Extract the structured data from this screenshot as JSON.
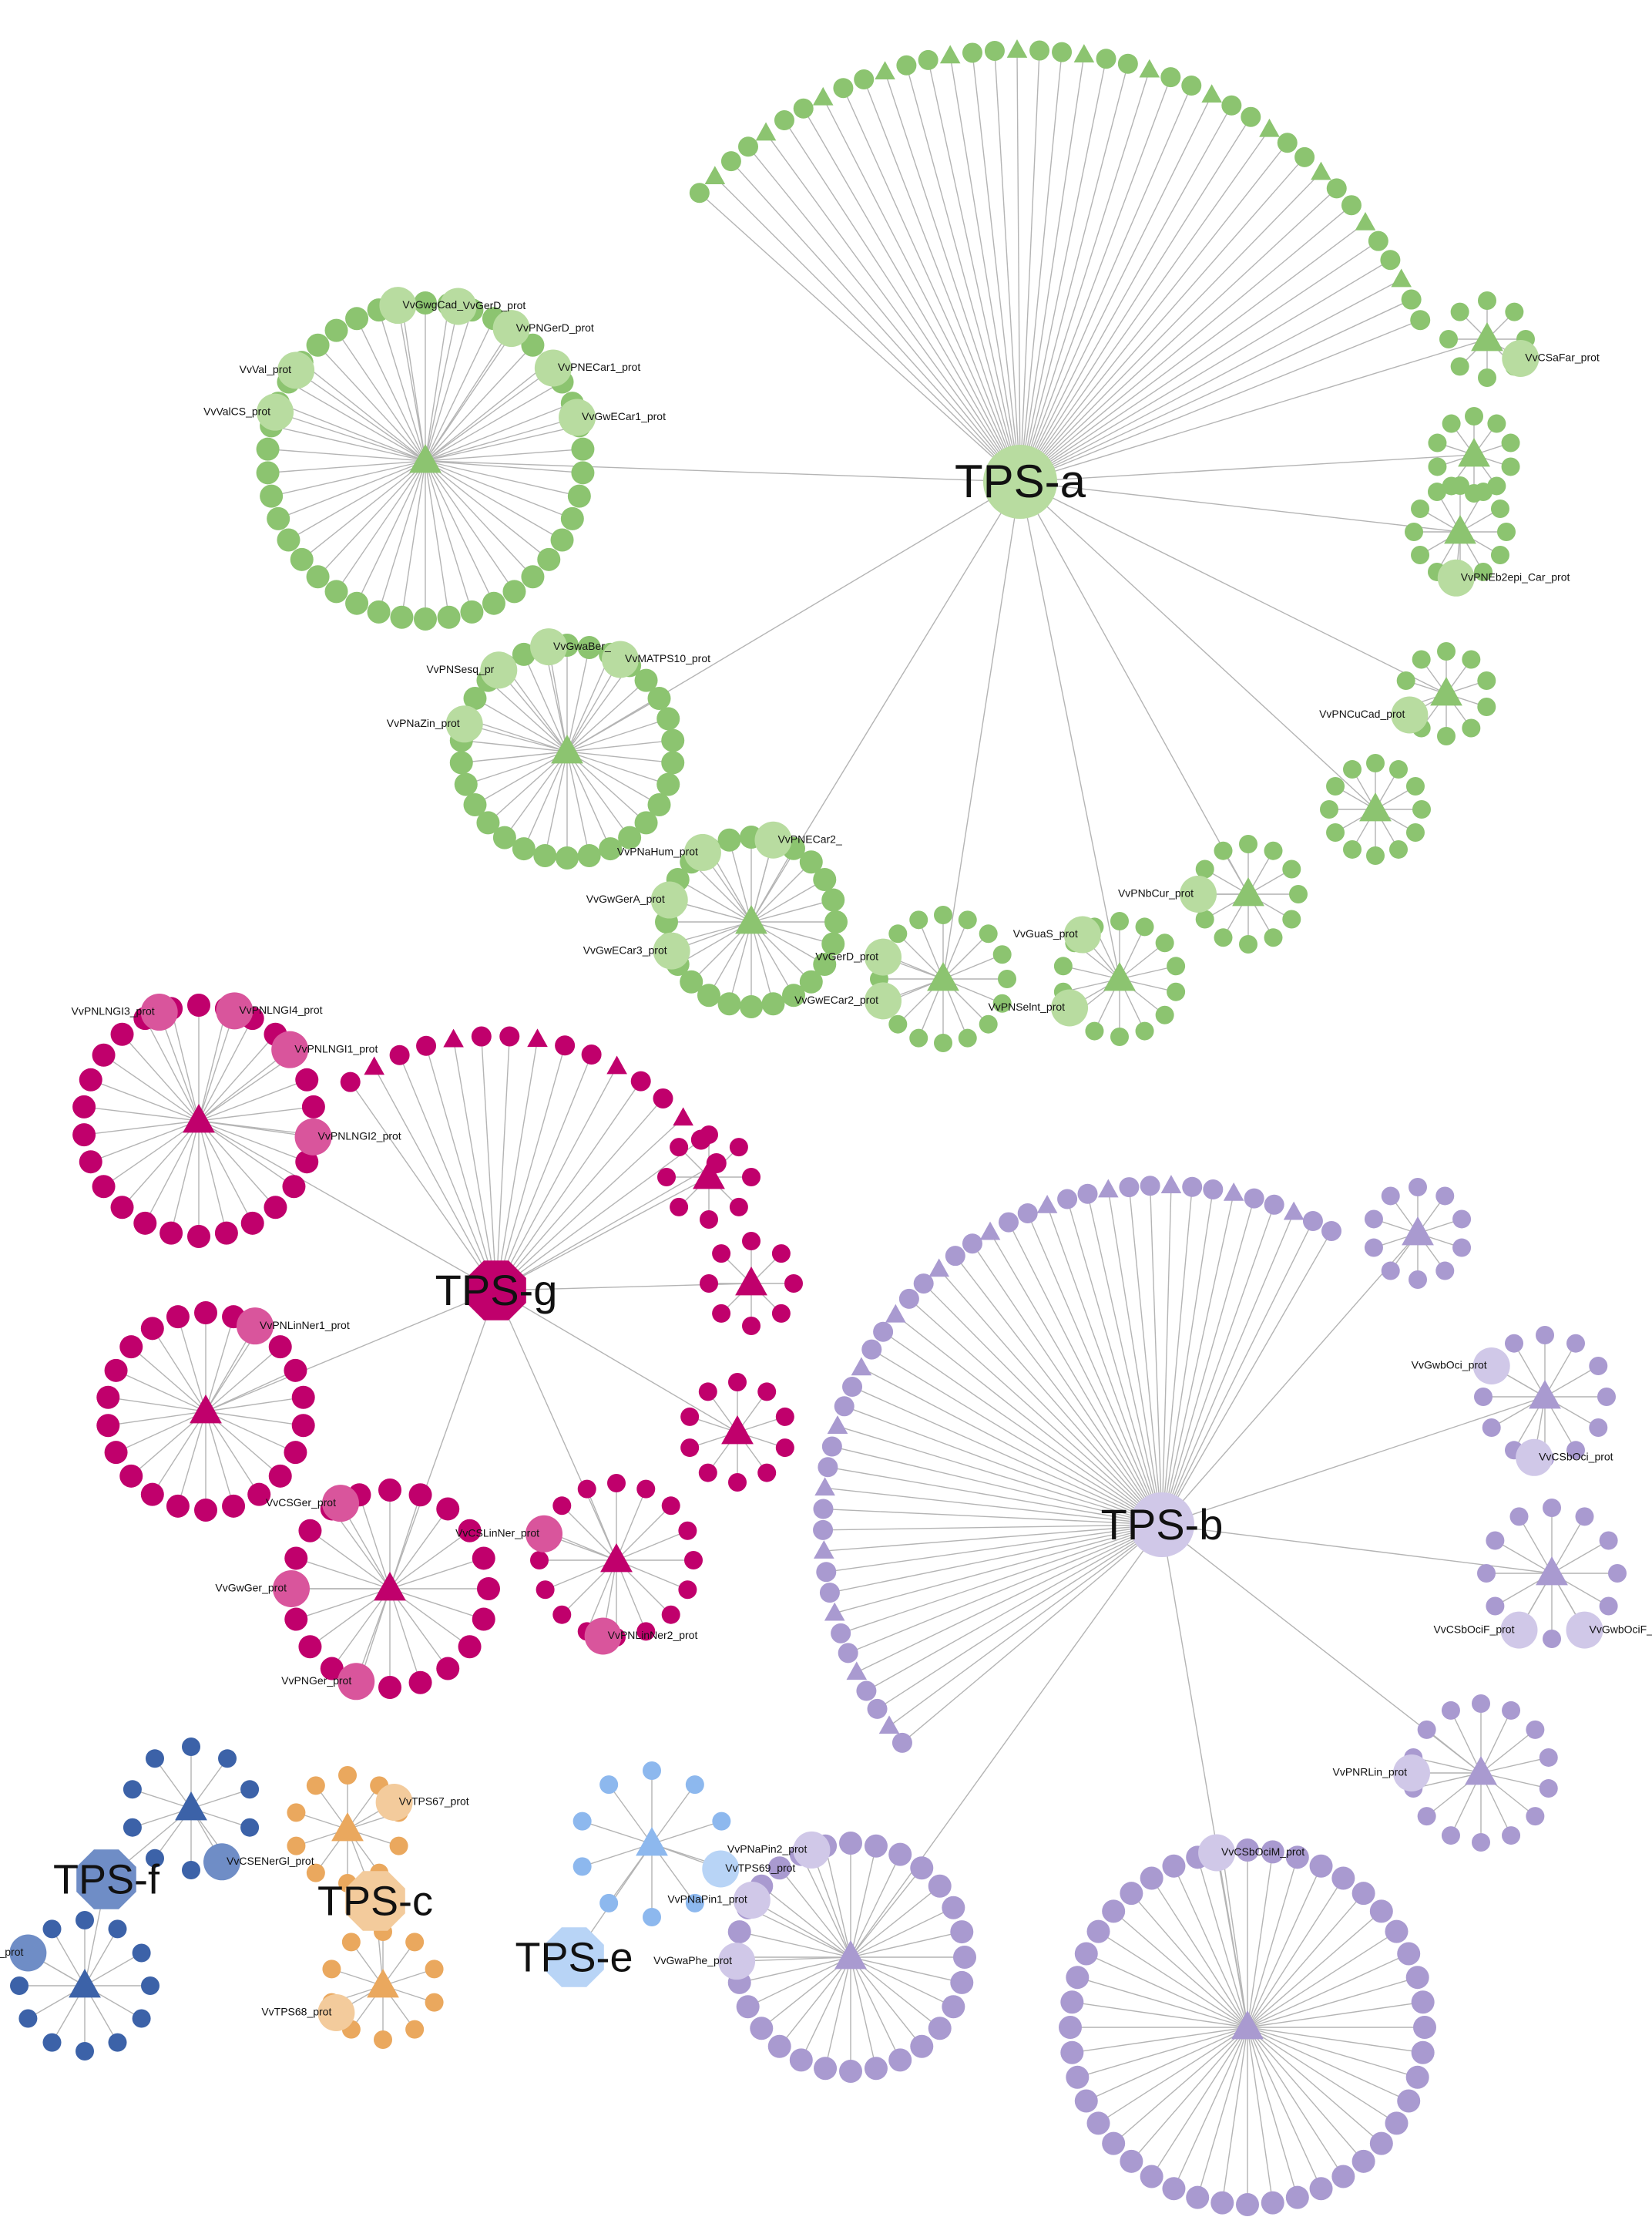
{
  "groups": [
    {
      "label": "TPS-a",
      "color": "#8cc470",
      "light": "#b8dca0",
      "clusters": [
        {
          "labels": [
            "VvGwgCad_",
            "VvGerD_prot",
            "VvPNGerD_prot",
            "VvVal_prot",
            "VvPNECar1_prot",
            "VvValCS_prot",
            "VvGwECar1_prot"
          ]
        },
        {
          "labels": [
            "VvGwaBer_",
            "VvMATPS10_prot",
            "VvPNSesq_pr",
            "VvPNaZin_prot"
          ]
        },
        {
          "labels": [
            "VvPNECar2_",
            "VvPNaHum_prot",
            "VvGwGerA_prot",
            "VvGwECar3_prot"
          ]
        },
        {
          "labels": [
            "VvGerD_prot",
            "VvGwECar2_prot"
          ]
        },
        {
          "labels": [
            "VvGuaS_prot",
            "VvPNSelnt_prot"
          ]
        },
        {
          "labels": [
            "VvPNbCur_prot"
          ]
        },
        {
          "labels": [
            "VvPNCuCad_prot"
          ]
        },
        {
          "labels": [
            "VvPNEb2epi_Car_prot"
          ]
        },
        {
          "labels": [
            "VvCSaFar_prot"
          ]
        }
      ]
    },
    {
      "label": "TPS-g",
      "color": "#c0006c",
      "light": "#d9559c",
      "clusters": [
        {
          "labels": [
            "VvPNLNGI3_prot",
            "VvPNLNGI4_prot",
            "VvPNLNGI1_prot",
            "VvPNLNGI2_prot"
          ]
        },
        {
          "labels": [
            "VvPNLinNer1_prot"
          ]
        },
        {
          "labels": [
            "VvCSGer_prot",
            "VvGwGer_prot",
            "VvPNGer_prot"
          ]
        },
        {
          "labels": [
            "VvCSLinNer_prot",
            "VvPNLinNer2_prot"
          ]
        }
      ]
    },
    {
      "label": "TPS-b",
      "color": "#a99ad0",
      "light": "#d0c8e8",
      "clusters": [
        {
          "labels": [
            "VvGwbOci_prot",
            "VvCSbOci_prot"
          ]
        },
        {
          "labels": [
            "VvCSbOciF_prot",
            "VvGwbOciF_prot"
          ]
        },
        {
          "labels": [
            "VvPNRLin_prot"
          ]
        },
        {
          "labels": [
            "VvCSbOciM_prot"
          ]
        },
        {
          "labels": [
            "VvPNaPin2_prot",
            "VvPNaPin1_prot",
            "VvGwaPhe_prot"
          ]
        }
      ]
    },
    {
      "label": "TPS-f",
      "color": "#3c62a8",
      "light": "#6f8dc6",
      "clusters": [
        {
          "labels": [
            "VvCSENerGl_prot"
          ]
        },
        {
          "labels": [
            "VvPNENerGl_prot"
          ]
        }
      ]
    },
    {
      "label": "TPS-c",
      "color": "#eaa85e",
      "light": "#f3cb9c",
      "clusters": [
        {
          "labels": [
            "VvTPS67_prot"
          ]
        },
        {
          "labels": [
            "VvTPS68_prot"
          ]
        }
      ]
    },
    {
      "label": "TPS-e",
      "color": "#8db8ee",
      "light": "#b8d4f6",
      "clusters": [
        {
          "labels": [
            "VvTPS69_prot"
          ]
        }
      ]
    }
  ]
}
